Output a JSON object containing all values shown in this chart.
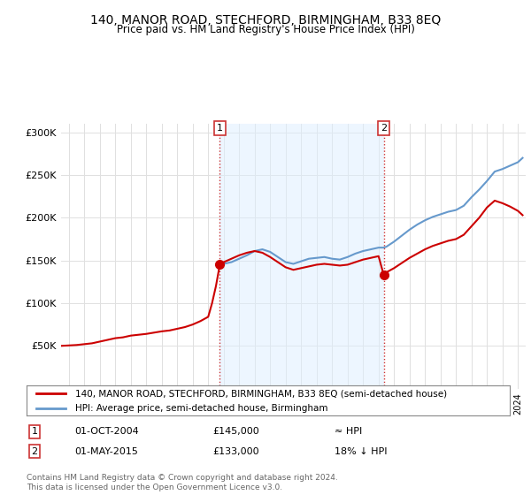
{
  "title": "140, MANOR ROAD, STECHFORD, BIRMINGHAM, B33 8EQ",
  "subtitle": "Price paid vs. HM Land Registry's House Price Index (HPI)",
  "legend_line1": "140, MANOR ROAD, STECHFORD, BIRMINGHAM, B33 8EQ (semi-detached house)",
  "legend_line2": "HPI: Average price, semi-detached house, Birmingham",
  "footer": "Contains HM Land Registry data © Crown copyright and database right 2024.\nThis data is licensed under the Open Government Licence v3.0.",
  "price_color": "#cc0000",
  "hpi_color": "#6699cc",
  "vline_color": "#cc3333",
  "shade_color": "#ddeeff",
  "background_color": "#ffffff",
  "grid_color": "#e0e0e0",
  "ylim_min": 0,
  "ylim_max": 310000,
  "yticks": [
    0,
    50000,
    100000,
    150000,
    200000,
    250000,
    300000
  ],
  "xlim_min": 1994.5,
  "xlim_max": 2024.5,
  "sale1_x": 2004.75,
  "sale1_y": 145000,
  "sale2_x": 2015.333,
  "sale2_y": 133000,
  "years_hpi": [
    2004.75,
    2005.0,
    2005.5,
    2006.0,
    2006.5,
    2007.0,
    2007.5,
    2008.0,
    2008.5,
    2009.0,
    2009.5,
    2010.0,
    2010.5,
    2011.0,
    2011.5,
    2012.0,
    2012.5,
    2013.0,
    2013.5,
    2014.0,
    2014.5,
    2015.0,
    2015.33,
    2015.5,
    2016.0,
    2016.5,
    2017.0,
    2017.5,
    2018.0,
    2018.5,
    2019.0,
    2019.5,
    2020.0,
    2020.5,
    2021.0,
    2021.5,
    2022.0,
    2022.5,
    2023.0,
    2023.5,
    2024.0,
    2024.3
  ],
  "hpi_values": [
    145000,
    146000,
    148000,
    152000,
    156000,
    161000,
    163000,
    160000,
    154000,
    148000,
    146000,
    149000,
    152000,
    153000,
    154000,
    152000,
    151000,
    154000,
    158000,
    161000,
    163000,
    165000,
    165000,
    166000,
    172000,
    179000,
    186000,
    192000,
    197000,
    201000,
    204000,
    207000,
    209000,
    214000,
    224000,
    233000,
    243000,
    254000,
    257000,
    261000,
    265000,
    270000
  ],
  "years_price": [
    1994.5,
    1995.0,
    1995.5,
    1996.0,
    1996.5,
    1997.0,
    1997.5,
    1998.0,
    1998.5,
    1999.0,
    1999.5,
    2000.0,
    2000.5,
    2001.0,
    2001.5,
    2002.0,
    2002.5,
    2003.0,
    2003.5,
    2004.0,
    2004.25,
    2004.5,
    2004.75,
    2005.0,
    2005.5,
    2006.0,
    2006.5,
    2007.0,
    2007.5,
    2008.0,
    2008.5,
    2009.0,
    2009.5,
    2010.0,
    2010.5,
    2011.0,
    2011.5,
    2012.0,
    2012.5,
    2013.0,
    2013.5,
    2014.0,
    2014.5,
    2015.0,
    2015.333,
    2015.5,
    2016.0,
    2016.5,
    2017.0,
    2017.5,
    2018.0,
    2018.5,
    2019.0,
    2019.5,
    2020.0,
    2020.5,
    2021.0,
    2021.5,
    2022.0,
    2022.5,
    2023.0,
    2023.5,
    2024.0,
    2024.3
  ],
  "price_values": [
    50000,
    50500,
    51000,
    52000,
    53000,
    55000,
    57000,
    59000,
    60000,
    62000,
    63000,
    64000,
    65500,
    67000,
    68000,
    70000,
    72000,
    75000,
    79000,
    84000,
    100000,
    120000,
    145000,
    148000,
    152000,
    156000,
    159000,
    161000,
    159000,
    154000,
    148000,
    142000,
    139000,
    141000,
    143000,
    145000,
    146000,
    145000,
    144000,
    145000,
    148000,
    151000,
    153000,
    155000,
    133000,
    136000,
    141000,
    147000,
    153000,
    158000,
    163000,
    167000,
    170000,
    173000,
    175000,
    180000,
    190000,
    200000,
    212000,
    220000,
    217000,
    213000,
    208000,
    203000
  ]
}
